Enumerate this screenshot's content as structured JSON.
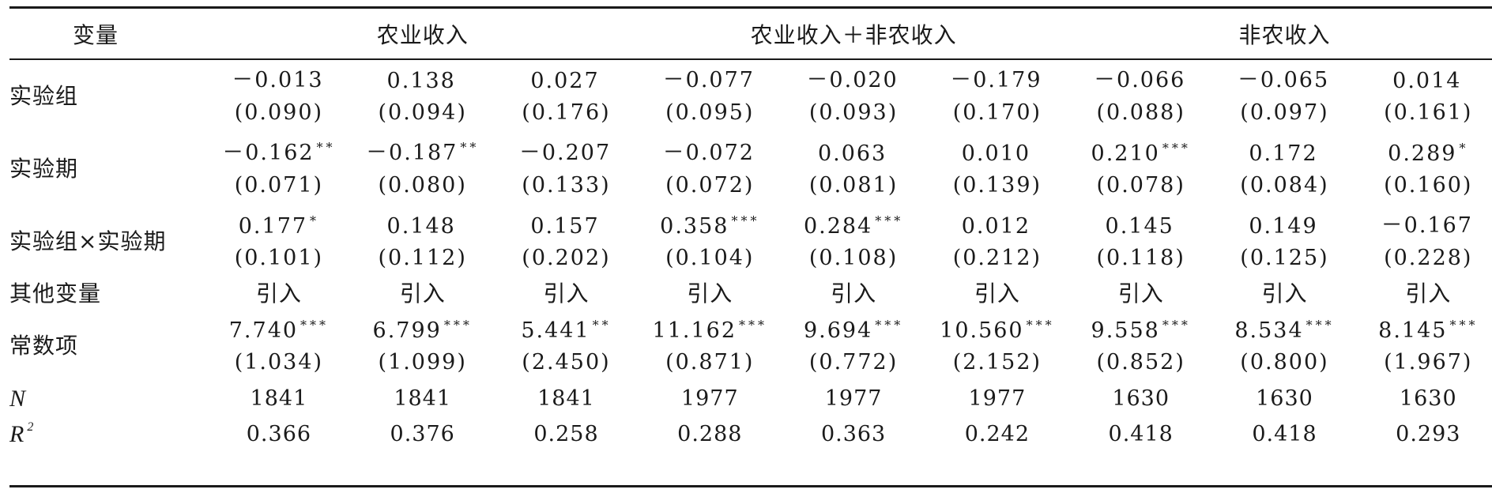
{
  "table": {
    "headers": {
      "variable": "变量",
      "groups": [
        {
          "label": "农业收入",
          "span": 3
        },
        {
          "label": "农业收入＋非农收入",
          "span": 3
        },
        {
          "label": "非农收入",
          "span": 3
        }
      ]
    },
    "coef_rows": [
      {
        "label": "实验组",
        "coefs": [
          {
            "v": "－0.013",
            "s": ""
          },
          {
            "v": "0.138",
            "s": ""
          },
          {
            "v": "0.027",
            "s": ""
          },
          {
            "v": "－0.077",
            "s": ""
          },
          {
            "v": "－0.020",
            "s": ""
          },
          {
            "v": "－0.179",
            "s": ""
          },
          {
            "v": "－0.066",
            "s": ""
          },
          {
            "v": "－0.065",
            "s": ""
          },
          {
            "v": "0.014",
            "s": ""
          }
        ],
        "se": [
          "(0.090)",
          "(0.094)",
          "(0.176)",
          "(0.095)",
          "(0.093)",
          "(0.170)",
          "(0.088)",
          "(0.097)",
          "(0.161)"
        ]
      },
      {
        "label": "实验期",
        "coefs": [
          {
            "v": "－0.162",
            "s": "**"
          },
          {
            "v": "－0.187",
            "s": "**"
          },
          {
            "v": "－0.207",
            "s": ""
          },
          {
            "v": "－0.072",
            "s": ""
          },
          {
            "v": "0.063",
            "s": ""
          },
          {
            "v": "0.010",
            "s": ""
          },
          {
            "v": "0.210",
            "s": "***"
          },
          {
            "v": "0.172",
            "s": ""
          },
          {
            "v": "0.289",
            "s": "*"
          }
        ],
        "se": [
          "(0.071)",
          "(0.080)",
          "(0.133)",
          "(0.072)",
          "(0.081)",
          "(0.139)",
          "(0.078)",
          "(0.084)",
          "(0.160)"
        ]
      },
      {
        "label": "实验组×实验期",
        "coefs": [
          {
            "v": "0.177",
            "s": "*"
          },
          {
            "v": "0.148",
            "s": ""
          },
          {
            "v": "0.157",
            "s": ""
          },
          {
            "v": "0.358",
            "s": "***"
          },
          {
            "v": "0.284",
            "s": "***"
          },
          {
            "v": "0.012",
            "s": ""
          },
          {
            "v": "0.145",
            "s": ""
          },
          {
            "v": "0.149",
            "s": ""
          },
          {
            "v": "－0.167",
            "s": ""
          }
        ],
        "se": [
          "(0.101)",
          "(0.112)",
          "(0.202)",
          "(0.104)",
          "(0.108)",
          "(0.212)",
          "(0.118)",
          "(0.125)",
          "(0.228)"
        ]
      }
    ],
    "controls_row": {
      "label": "其他变量",
      "values": [
        "引入",
        "引入",
        "引入",
        "引入",
        "引入",
        "引入",
        "引入",
        "引入",
        "引入"
      ]
    },
    "constant_row": {
      "label": "常数项",
      "coefs": [
        {
          "v": "7.740",
          "s": "***"
        },
        {
          "v": "6.799",
          "s": "***"
        },
        {
          "v": "5.441",
          "s": "**"
        },
        {
          "v": "11.162",
          "s": "***"
        },
        {
          "v": "9.694",
          "s": "***"
        },
        {
          "v": "10.560",
          "s": "***"
        },
        {
          "v": "9.558",
          "s": "***"
        },
        {
          "v": "8.534",
          "s": "***"
        },
        {
          "v": "8.145",
          "s": "***"
        }
      ],
      "se": [
        "(1.034)",
        "(1.099)",
        "(2.450)",
        "(0.871)",
        "(0.772)",
        "(2.152)",
        "(0.852)",
        "(0.800)",
        "(1.967)"
      ]
    },
    "n_row": {
      "label": "N",
      "values": [
        "1841",
        "1841",
        "1841",
        "1977",
        "1977",
        "1977",
        "1630",
        "1630",
        "1630"
      ]
    },
    "r2_row": {
      "label": "R",
      "label_sup": "2",
      "values": [
        "0.366",
        "0.376",
        "0.258",
        "0.288",
        "0.363",
        "0.242",
        "0.418",
        "0.418",
        "0.293"
      ]
    }
  }
}
